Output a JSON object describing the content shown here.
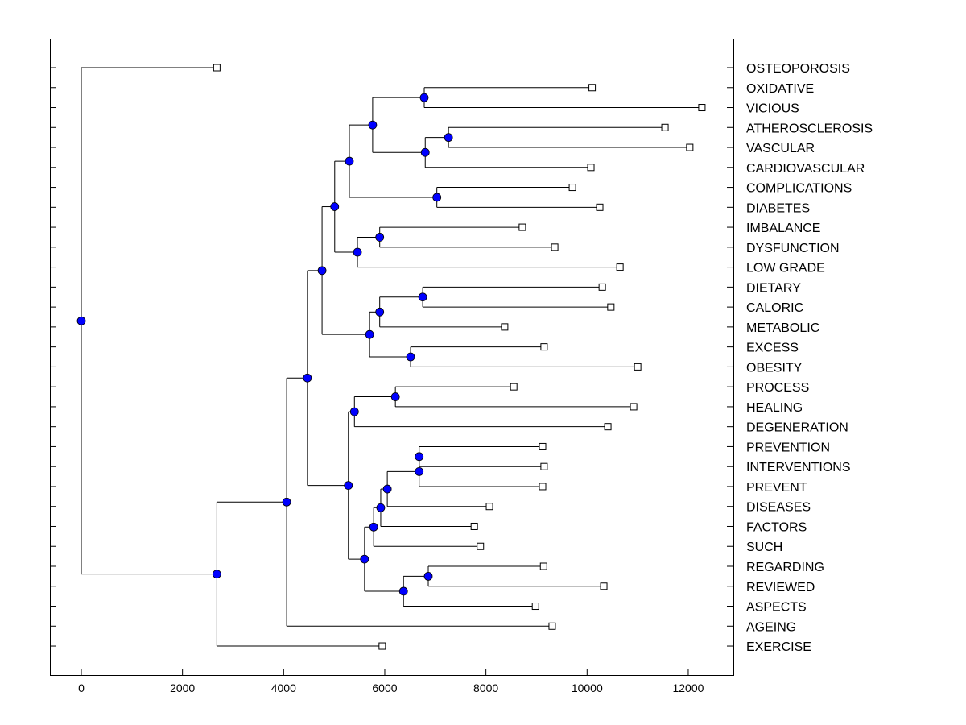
{
  "chart_data": {
    "type": "dendrogram",
    "orientation": "horizontal",
    "xlim": [
      -600,
      12900
    ],
    "x_ticks": [
      "0",
      "2000",
      "4000",
      "6000",
      "8000",
      "10000",
      "12000"
    ],
    "x_tick_values": [
      0,
      2000,
      4000,
      6000,
      8000,
      10000,
      12000
    ],
    "grid": false,
    "colors": {
      "node": "#0000ff",
      "line": "#000000",
      "leaf": "#ffffff"
    },
    "tree": {
      "h": 0,
      "children": [
        {
          "label": "OSTEOPOROSIS",
          "value": 2680
        },
        {
          "h": 2680,
          "children": [
            {
              "h": 4060,
              "children": [
                {
                  "h": 4470,
                  "children": [
                    {
                      "h": 4760,
                      "children": [
                        {
                          "h": 5010,
                          "children": [
                            {
                              "h": 5300,
                              "children": [
                                {
                                  "h": 5760,
                                  "children": [
                                    {
                                      "h": 6780,
                                      "children": [
                                        {
                                          "label": "OXIDATIVE",
                                          "value": 10100
                                        },
                                        {
                                          "label": "VICIOUS",
                                          "value": 12270
                                        }
                                      ]
                                    },
                                    {
                                      "h": 6800,
                                      "children": [
                                        {
                                          "h": 7260,
                                          "children": [
                                            {
                                              "label": "ATHEROSCLEROSIS",
                                              "value": 11540
                                            },
                                            {
                                              "label": "VASCULAR",
                                              "value": 12030
                                            }
                                          ]
                                        },
                                        {
                                          "label": "CARDIOVASCULAR",
                                          "value": 10075
                                        }
                                      ]
                                    }
                                  ]
                                },
                                {
                                  "h": 7030,
                                  "children": [
                                    {
                                      "label": "COMPLICATIONS",
                                      "value": 9710
                                    },
                                    {
                                      "label": "DIABETES",
                                      "value": 10250
                                    }
                                  ]
                                }
                              ]
                            },
                            {
                              "h": 5460,
                              "children": [
                                {
                                  "h": 5900,
                                  "children": [
                                    {
                                      "label": "IMBALANCE",
                                      "value": 8720
                                    },
                                    {
                                      "label": "DYSFUNCTION",
                                      "value": 9360
                                    }
                                  ]
                                },
                                {
                                  "label": "LOW GRADE",
                                  "value": 10650
                                }
                              ]
                            }
                          ]
                        },
                        {
                          "h": 5700,
                          "children": [
                            {
                              "h": 5900,
                              "children": [
                                {
                                  "h": 6750,
                                  "children": [
                                    {
                                      "label": "DIETARY",
                                      "value": 10300
                                    },
                                    {
                                      "label": "CALORIC",
                                      "value": 10470
                                    }
                                  ]
                                },
                                {
                                  "label": "METABOLIC",
                                  "value": 8370
                                }
                              ]
                            },
                            {
                              "h": 6510,
                              "children": [
                                {
                                  "label": "EXCESS",
                                  "value": 9150
                                },
                                {
                                  "label": "OBESITY",
                                  "value": 11000
                                }
                              ]
                            }
                          ]
                        }
                      ]
                    },
                    {
                      "h": 5280,
                      "children": [
                        {
                          "h": 5400,
                          "children": [
                            {
                              "h": 6210,
                              "children": [
                                {
                                  "label": "PROCESS",
                                  "value": 8550
                                },
                                {
                                  "label": "HEALING",
                                  "value": 10920
                                }
                              ]
                            },
                            {
                              "label": "DEGENERATION",
                              "value": 10410
                            }
                          ]
                        },
                        {
                          "h": 5600,
                          "children": [
                            {
                              "h": 5780,
                              "children": [
                                {
                                  "h": 5920,
                                  "children": [
                                    {
                                      "h": 6050,
                                      "children": [
                                        {
                                          "h": 6680,
                                          "children": [
                                            {
                                              "h": 6680,
                                              "children": [
                                                {
                                                  "label": "PREVENTION",
                                                  "value": 9120
                                                },
                                                {
                                                  "label": "INTERVENTIONS",
                                                  "value": 9150
                                                }
                                              ]
                                            },
                                            {
                                              "label": "PREVENT",
                                              "value": 9120
                                            }
                                          ]
                                        },
                                        {
                                          "label": "DISEASES",
                                          "value": 8070
                                        }
                                      ]
                                    },
                                    {
                                      "label": "FACTORS",
                                      "value": 7770
                                    }
                                  ]
                                },
                                {
                                  "label": "SUCH",
                                  "value": 7890
                                }
                              ]
                            },
                            {
                              "h": 6370,
                              "children": [
                                {
                                  "h": 6860,
                                  "children": [
                                    {
                                      "label": "REGARDING",
                                      "value": 9140
                                    },
                                    {
                                      "label": "REVIEWED",
                                      "value": 10330
                                    }
                                  ]
                                },
                                {
                                  "label": "ASPECTS",
                                  "value": 8980
                                }
                              ]
                            }
                          ]
                        }
                      ]
                    }
                  ]
                },
                {
                  "label": "AGEING",
                  "value": 9310
                }
              ]
            },
            {
              "label": "EXERCISE",
              "value": 5950
            }
          ]
        }
      ]
    }
  }
}
